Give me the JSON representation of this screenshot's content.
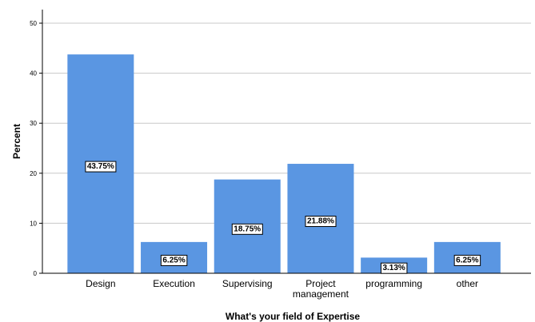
{
  "chart_data": {
    "type": "bar",
    "categories": [
      [
        "Design"
      ],
      [
        "Execution"
      ],
      [
        "Supervising"
      ],
      [
        "Project",
        "management"
      ],
      [
        "programming"
      ],
      [
        "other"
      ]
    ],
    "values": [
      43.75,
      6.25,
      18.75,
      21.88,
      3.13,
      6.25
    ],
    "data_labels": [
      "43.75%",
      "6.25%",
      "18.75%",
      "21.88%",
      "3.13%",
      "6.25%"
    ],
    "title": "",
    "xlabel": "What's your field of Expertise",
    "ylabel": "Percent",
    "ylim": [
      0,
      50
    ],
    "yticks": [
      0,
      10,
      20,
      30,
      40,
      50
    ],
    "grid": "horizontal",
    "bar_color": "#5a96e2"
  }
}
